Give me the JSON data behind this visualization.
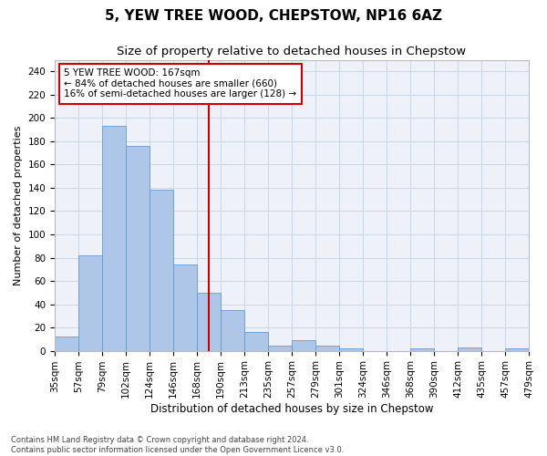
{
  "title": "5, YEW TREE WOOD, CHEPSTOW, NP16 6AZ",
  "subtitle": "Size of property relative to detached houses in Chepstow",
  "xlabel": "Distribution of detached houses by size in Chepstow",
  "ylabel": "Number of detached properties",
  "bar_heights": [
    12,
    82,
    193,
    176,
    138,
    74,
    50,
    35,
    16,
    4,
    9,
    4,
    2,
    0,
    0,
    2,
    0,
    3,
    0,
    2
  ],
  "bar_labels": [
    "35sqm",
    "57sqm",
    "79sqm",
    "102sqm",
    "124sqm",
    "146sqm",
    "168sqm",
    "190sqm",
    "213sqm",
    "235sqm",
    "257sqm",
    "279sqm",
    "301sqm",
    "324sqm",
    "346sqm",
    "368sqm",
    "390sqm",
    "412sqm",
    "435sqm",
    "457sqm",
    "479sqm"
  ],
  "bar_color": "#aec6e8",
  "bar_edge_color": "#6699cc",
  "vline_color": "#cc0000",
  "annotation_text_line1": "5 YEW TREE WOOD: 167sqm",
  "annotation_text_line2": "← 84% of detached houses are smaller (660)",
  "annotation_text_line3": "16% of semi-detached houses are larger (128) →",
  "annotation_box_color": "#cc0000",
  "ylim": [
    0,
    250
  ],
  "yticks": [
    0,
    20,
    40,
    60,
    80,
    100,
    120,
    140,
    160,
    180,
    200,
    220,
    240
  ],
  "grid_color": "#c8d8e8",
  "background_color": "#eef2f8",
  "footer_text": "Contains HM Land Registry data © Crown copyright and database right 2024.\nContains public sector information licensed under the Open Government Licence v3.0.",
  "title_fontsize": 11,
  "subtitle_fontsize": 9.5,
  "xlabel_fontsize": 8.5,
  "ylabel_fontsize": 8,
  "tick_fontsize": 7.5,
  "footer_fontsize": 6
}
